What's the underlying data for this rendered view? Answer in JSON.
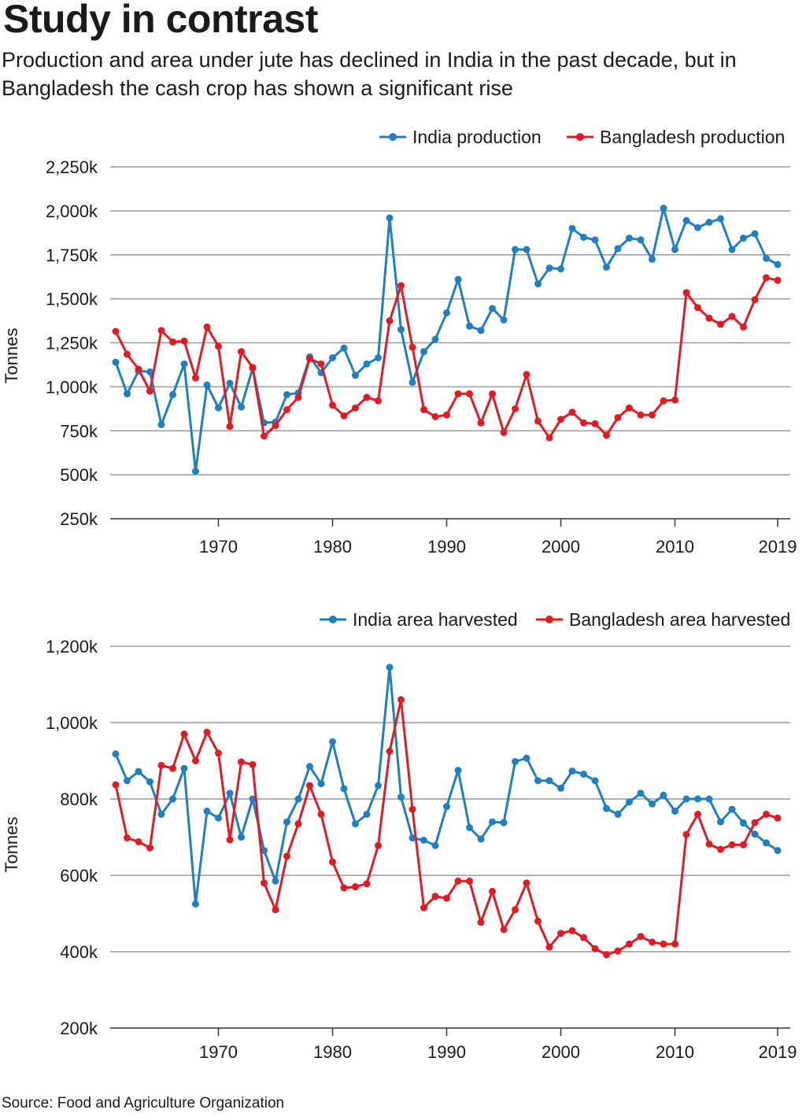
{
  "header": {
    "title": "Study in contrast",
    "subtitle": "Production and area under jute has declined in India in the past decade, but in Bangladesh the cash crop has shown a significant rise"
  },
  "footer": {
    "source": "Source:  Food and Agriculture Organization"
  },
  "colors": {
    "india": "#1f7fc0",
    "bangladesh": "#e01b24",
    "grid": "#999999"
  },
  "chart_data": [
    {
      "type": "line",
      "title": "",
      "ylabel": "Tonnes",
      "xlabel": "",
      "ylim": [
        250,
        2250
      ],
      "yticks": [
        250,
        500,
        750,
        1000,
        1250,
        1500,
        1750,
        2000,
        2250
      ],
      "ytick_labels": [
        "250k",
        "500k",
        "750k",
        "1,000k",
        "1,250k",
        "1,500k",
        "1,750k",
        "2,000k",
        "2,250k"
      ],
      "xlim": [
        1961,
        2019
      ],
      "xticks": [
        1970,
        1980,
        1990,
        2000,
        2010,
        2019
      ],
      "xtick_labels": [
        "1970",
        "1980",
        "1990",
        "2000",
        "2010",
        "2019"
      ],
      "grid": true,
      "legend_position": "top-right",
      "x": [
        1961,
        1962,
        1963,
        1964,
        1965,
        1966,
        1967,
        1968,
        1969,
        1970,
        1971,
        1972,
        1973,
        1974,
        1975,
        1976,
        1977,
        1978,
        1979,
        1980,
        1981,
        1982,
        1983,
        1984,
        1985,
        1986,
        1987,
        1988,
        1989,
        1990,
        1991,
        1992,
        1993,
        1994,
        1995,
        1996,
        1997,
        1998,
        1999,
        2000,
        2001,
        2002,
        2003,
        2004,
        2005,
        2006,
        2007,
        2008,
        2009,
        2010,
        2011,
        2012,
        2013,
        2014,
        2015,
        2016,
        2017,
        2018,
        2019
      ],
      "series": [
        {
          "name": "India production",
          "color": "#1f7fc0",
          "values": [
            1140,
            960,
            1090,
            1085,
            785,
            955,
            1130,
            520,
            1010,
            880,
            1020,
            885,
            1105,
            795,
            800,
            955,
            965,
            1170,
            1080,
            1165,
            1220,
            1065,
            1130,
            1165,
            1960,
            1325,
            1025,
            1200,
            1270,
            1420,
            1610,
            1345,
            1320,
            1445,
            1380,
            1780,
            1780,
            1585,
            1675,
            1670,
            1900,
            1850,
            1835,
            1680,
            1785,
            1845,
            1835,
            1725,
            2015,
            1780,
            1945,
            1905,
            1935,
            1955,
            1780,
            1845,
            1870,
            1730,
            1695
          ]
        },
        {
          "name": "Bangladesh production",
          "color": "#e01b24",
          "values": [
            1315,
            1185,
            1100,
            975,
            1320,
            1255,
            1260,
            1050,
            1340,
            1230,
            775,
            1200,
            1110,
            720,
            780,
            870,
            940,
            1160,
            1130,
            895,
            835,
            880,
            940,
            920,
            1375,
            1575,
            1225,
            870,
            830,
            840,
            960,
            960,
            795,
            960,
            740,
            875,
            1070,
            805,
            710,
            815,
            855,
            795,
            790,
            725,
            825,
            880,
            840,
            840,
            920,
            925,
            1535,
            1450,
            1390,
            1355,
            1400,
            1340,
            1495,
            1620,
            1605
          ]
        }
      ]
    },
    {
      "type": "line",
      "title": "",
      "ylabel": "Tonnes",
      "xlabel": "",
      "ylim": [
        200,
        1200
      ],
      "yticks": [
        200,
        400,
        600,
        800,
        1000,
        1200
      ],
      "ytick_labels": [
        "200k",
        "400k",
        "600k",
        "800k",
        "1,000k",
        "1,200k"
      ],
      "xlim": [
        1961,
        2019
      ],
      "xticks": [
        1970,
        1980,
        1990,
        2000,
        2010,
        2019
      ],
      "xtick_labels": [
        "1970",
        "1980",
        "1990",
        "2000",
        "2010",
        "2019"
      ],
      "grid": true,
      "legend_position": "top-right",
      "x": [
        1961,
        1962,
        1963,
        1964,
        1965,
        1966,
        1967,
        1968,
        1969,
        1970,
        1971,
        1972,
        1973,
        1974,
        1975,
        1976,
        1977,
        1978,
        1979,
        1980,
        1981,
        1982,
        1983,
        1984,
        1985,
        1986,
        1987,
        1988,
        1989,
        1990,
        1991,
        1992,
        1993,
        1994,
        1995,
        1996,
        1997,
        1998,
        1999,
        2000,
        2001,
        2002,
        2003,
        2004,
        2005,
        2006,
        2007,
        2008,
        2009,
        2010,
        2011,
        2012,
        2013,
        2014,
        2015,
        2016,
        2017,
        2018,
        2019
      ],
      "series": [
        {
          "name": "India area harvested",
          "color": "#1f7fc0",
          "values": [
            918,
            848,
            872,
            845,
            760,
            800,
            880,
            525,
            768,
            750,
            815,
            700,
            800,
            665,
            585,
            740,
            800,
            885,
            840,
            950,
            827,
            735,
            760,
            835,
            1145,
            805,
            698,
            692,
            678,
            780,
            875,
            725,
            695,
            740,
            738,
            898,
            907,
            848,
            848,
            828,
            873,
            865,
            848,
            775,
            760,
            792,
            815,
            787,
            810,
            768,
            800,
            800,
            800,
            740,
            773,
            737,
            708,
            685,
            665
          ]
        },
        {
          "name": "Bangladesh area harvested",
          "color": "#e01b24",
          "values": [
            837,
            698,
            688,
            672,
            888,
            880,
            970,
            900,
            975,
            920,
            693,
            897,
            890,
            580,
            510,
            650,
            735,
            835,
            760,
            635,
            567,
            570,
            578,
            678,
            925,
            1060,
            773,
            515,
            545,
            540,
            585,
            585,
            477,
            558,
            458,
            510,
            580,
            480,
            412,
            448,
            455,
            437,
            408,
            392,
            402,
            420,
            440,
            425,
            420,
            420,
            707,
            760,
            682,
            668,
            680,
            680,
            738,
            760,
            750
          ]
        }
      ]
    }
  ]
}
